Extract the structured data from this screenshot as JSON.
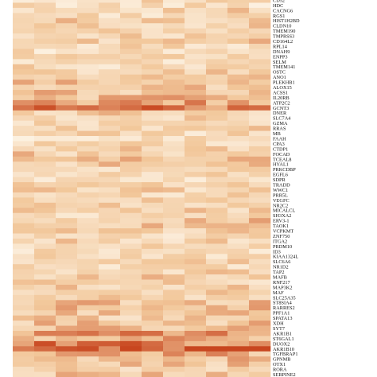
{
  "chart_data": {
    "type": "heatmap",
    "title": "",
    "xlabel": "",
    "ylabel": "",
    "columns": 12,
    "color_scale": {
      "low": "#fdf3e4",
      "mid": "#f2c79a",
      "high": "#c8461f"
    },
    "rows": [
      {
        "label": "CD52",
        "intensity": 0.3
      },
      {
        "label": "HDC",
        "intensity": 0.25
      },
      {
        "label": "CACNG6",
        "intensity": 0.35
      },
      {
        "label": "RGS1",
        "intensity": 0.3
      },
      {
        "label": "HIST1H2BD",
        "intensity": 0.4
      },
      {
        "label": "CLDN10",
        "intensity": 0.35
      },
      {
        "label": "TMEM190",
        "intensity": 0.3
      },
      {
        "label": "TMPRSS3",
        "intensity": 0.35
      },
      {
        "label": "CD164L2",
        "intensity": 0.4
      },
      {
        "label": "RPL14",
        "intensity": 0.3
      },
      {
        "label": "DNAH9",
        "intensity": 0.25
      },
      {
        "label": "ENPP3",
        "intensity": 0.3
      },
      {
        "label": "SELM",
        "intensity": 0.25
      },
      {
        "label": "TMEM141",
        "intensity": 0.3
      },
      {
        "label": "OSTC",
        "intensity": 0.35
      },
      {
        "label": "ANO1",
        "intensity": 0.4
      },
      {
        "label": "PLEKHB1",
        "intensity": 0.45
      },
      {
        "label": "ALOX15",
        "intensity": 0.4
      },
      {
        "label": "ACSS1",
        "intensity": 0.45
      },
      {
        "label": "IL20RB",
        "intensity": 0.5
      },
      {
        "label": "ATP2C2",
        "intensity": 0.6
      },
      {
        "label": "GCNT3",
        "intensity": 0.8
      },
      {
        "label": "DNER",
        "intensity": 0.4
      },
      {
        "label": "SLC7A4",
        "intensity": 0.35
      },
      {
        "label": "GZMA",
        "intensity": 0.3
      },
      {
        "label": "RRAS",
        "intensity": 0.35
      },
      {
        "label": "MB",
        "intensity": 0.3
      },
      {
        "label": "FAAH",
        "intensity": 0.25
      },
      {
        "label": "CPA3",
        "intensity": 0.3
      },
      {
        "label": "CTDP1",
        "intensity": 0.35
      },
      {
        "label": "FOCAD",
        "intensity": 0.4
      },
      {
        "label": "TCEAL8",
        "intensity": 0.45
      },
      {
        "label": "HYAL1",
        "intensity": 0.4
      },
      {
        "label": "PRKCDBP",
        "intensity": 0.35
      },
      {
        "label": "EGFL6",
        "intensity": 0.3
      },
      {
        "label": "SDPR",
        "intensity": 0.25
      },
      {
        "label": "TRADD",
        "intensity": 0.3
      },
      {
        "label": "WWC1",
        "intensity": 0.35
      },
      {
        "label": "PRR5L",
        "intensity": 0.3
      },
      {
        "label": "VEGFC",
        "intensity": 0.35
      },
      {
        "label": "NR2C2",
        "intensity": 0.4
      },
      {
        "label": "MICALCL",
        "intensity": 0.35
      },
      {
        "label": "SH3XA2",
        "intensity": 0.3
      },
      {
        "label": "ERV3-1",
        "intensity": 0.45
      },
      {
        "label": "TAOK1",
        "intensity": 0.4
      },
      {
        "label": "VCPKMT",
        "intensity": 0.35
      },
      {
        "label": "ZNF750",
        "intensity": 0.3
      },
      {
        "label": "ITGA2",
        "intensity": 0.35
      },
      {
        "label": "PRDM10",
        "intensity": 0.3
      },
      {
        "label": "ID3",
        "intensity": 0.25
      },
      {
        "label": "KIAA1324L",
        "intensity": 0.3
      },
      {
        "label": "SLC6A6",
        "intensity": 0.35
      },
      {
        "label": "NR1D2",
        "intensity": 0.3
      },
      {
        "label": "TAP2",
        "intensity": 0.35
      },
      {
        "label": "MAFB",
        "intensity": 0.4
      },
      {
        "label": "RNF217",
        "intensity": 0.35
      },
      {
        "label": "MAP3K2",
        "intensity": 0.4
      },
      {
        "label": "MAF",
        "intensity": 0.35
      },
      {
        "label": "SLC25A35",
        "intensity": 0.4
      },
      {
        "label": "ST8SIA4",
        "intensity": 0.45
      },
      {
        "label": "RARRES2",
        "intensity": 0.5
      },
      {
        "label": "PPF1A1",
        "intensity": 0.45
      },
      {
        "label": "SPATA13",
        "intensity": 0.4
      },
      {
        "label": "XDH",
        "intensity": 0.45
      },
      {
        "label": "SYT7",
        "intensity": 0.5
      },
      {
        "label": "AKR1B1",
        "intensity": 0.7
      },
      {
        "label": "ST6GAL1",
        "intensity": 0.55
      },
      {
        "label": "DUOX2",
        "intensity": 0.75
      },
      {
        "label": "AKR1B10",
        "intensity": 0.85
      },
      {
        "label": "TGFBRAP1",
        "intensity": 0.55
      },
      {
        "label": "GPNMB",
        "intensity": 0.5
      },
      {
        "label": "OTX1",
        "intensity": 0.45
      },
      {
        "label": "RORA",
        "intensity": 0.4
      },
      {
        "label": "SERPINE2",
        "intensity": 0.45
      }
    ]
  }
}
